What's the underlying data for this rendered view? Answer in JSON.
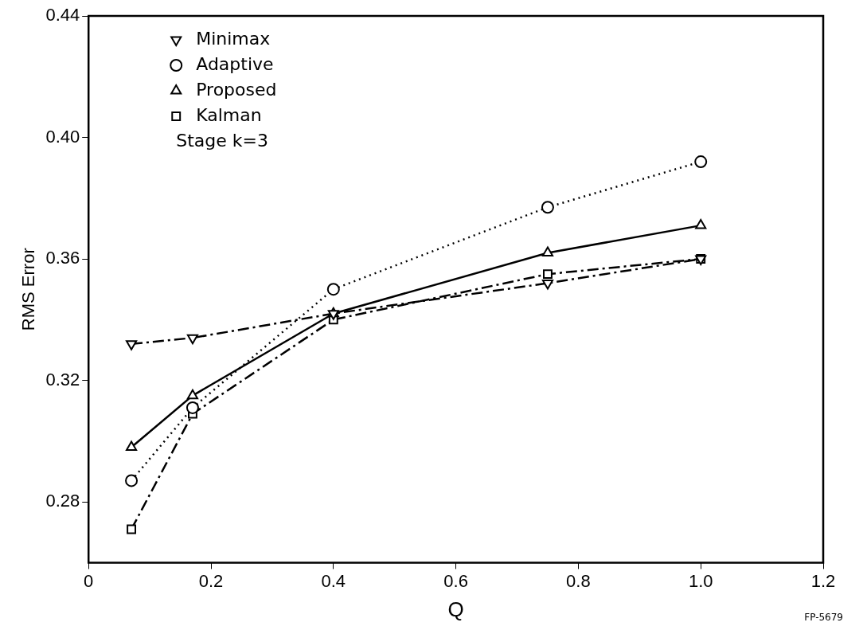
{
  "chart_data": {
    "type": "line",
    "xlabel": "Q",
    "ylabel": "RMS Error",
    "x": [
      0.07,
      0.17,
      0.4,
      0.75,
      1.0
    ],
    "xlim": [
      0,
      1.2
    ],
    "xticks": [
      0,
      0.2,
      0.4,
      0.6,
      0.8,
      {
        "value": 1,
        "label": "1.0"
      },
      1.2
    ],
    "ylim": [
      0.26,
      0.44
    ],
    "yticks": [
      {
        "value": 0.28,
        "label": "0.28"
      },
      {
        "value": 0.32,
        "label": "0.32"
      },
      {
        "value": 0.36,
        "label": "0.36"
      },
      {
        "value": 0.4,
        "label": "0.40"
      },
      {
        "value": 0.44,
        "label": "0.44"
      }
    ],
    "legend": "top left",
    "grid": false,
    "series": [
      {
        "name": "Minimax",
        "color": "#000000",
        "marker": "triangle_down",
        "line_style": "dashed",
        "values": [
          0.332,
          0.334,
          0.342,
          0.352,
          0.36
        ]
      },
      {
        "name": "Adaptive",
        "color": "#000000",
        "marker": "circle",
        "line_style": "dotted",
        "values": [
          0.287,
          0.311,
          0.35,
          0.377,
          0.392
        ]
      },
      {
        "name": "Proposed",
        "color": "#000000",
        "marker": "triangle",
        "line_style": "solid",
        "values": [
          0.298,
          0.315,
          0.342,
          0.362,
          0.371
        ]
      },
      {
        "name": "Kalman",
        "color": "#000000",
        "marker": "square",
        "line_style": "dashed",
        "values": [
          0.271,
          0.309,
          0.34,
          0.355,
          0.36
        ]
      }
    ],
    "annotations": [
      "Stage k=3",
      "FP-5679"
    ]
  }
}
